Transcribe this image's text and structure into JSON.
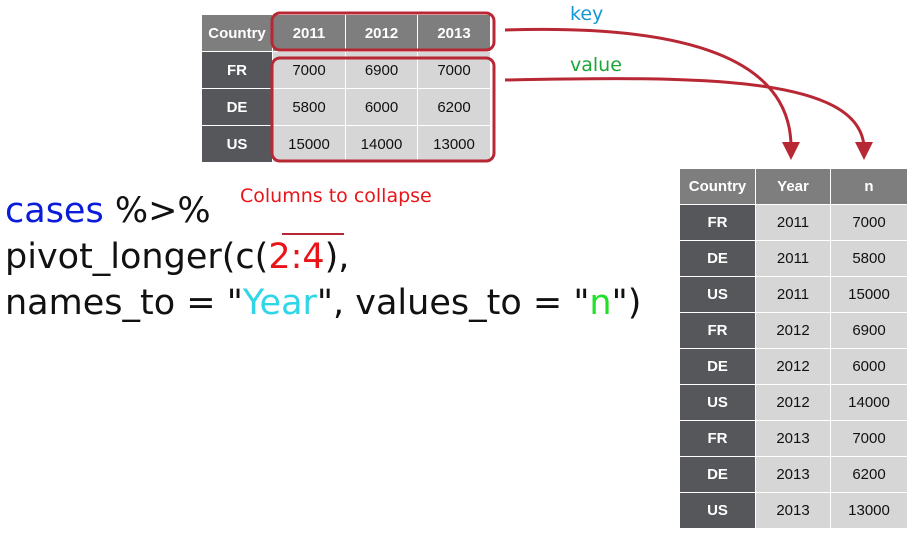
{
  "wide_table": {
    "headers": [
      "Country",
      "2011",
      "2012",
      "2013"
    ],
    "rows": [
      [
        "FR",
        "7000",
        "6900",
        "7000"
      ],
      [
        "DE",
        "5800",
        "6000",
        "6200"
      ],
      [
        "US",
        "15000",
        "14000",
        "13000"
      ]
    ]
  },
  "long_table": {
    "headers": [
      "Country",
      "Year",
      "n"
    ],
    "rows": [
      [
        "FR",
        "2011",
        "7000"
      ],
      [
        "DE",
        "2011",
        "5800"
      ],
      [
        "US",
        "2011",
        "15000"
      ],
      [
        "FR",
        "2012",
        "6900"
      ],
      [
        "DE",
        "2012",
        "6000"
      ],
      [
        "US",
        "2012",
        "14000"
      ],
      [
        "FR",
        "2013",
        "7000"
      ],
      [
        "DE",
        "2013",
        "6200"
      ],
      [
        "US",
        "2013",
        "13000"
      ]
    ]
  },
  "code": {
    "line1": {
      "object": "cases",
      "pipe": " %>%"
    },
    "line2": {
      "fn_open": "pivot_longer(c(",
      "cols": "2:4",
      "fn_close": "),"
    },
    "line3": {
      "names_arg": "names_to = \"",
      "names_val": "Year",
      "values_arg": "\", values_to = \"",
      "values_val": "n",
      "end": "\")"
    }
  },
  "annotations": {
    "collapse": "Columns to collapse",
    "key": "key",
    "value": "value"
  },
  "colors": {
    "highlight_box": "#b82834",
    "arrow": "#b82834",
    "key_label": "#1597d4",
    "value_label": "#1ea53a",
    "collapse_label": "#e8141a"
  }
}
